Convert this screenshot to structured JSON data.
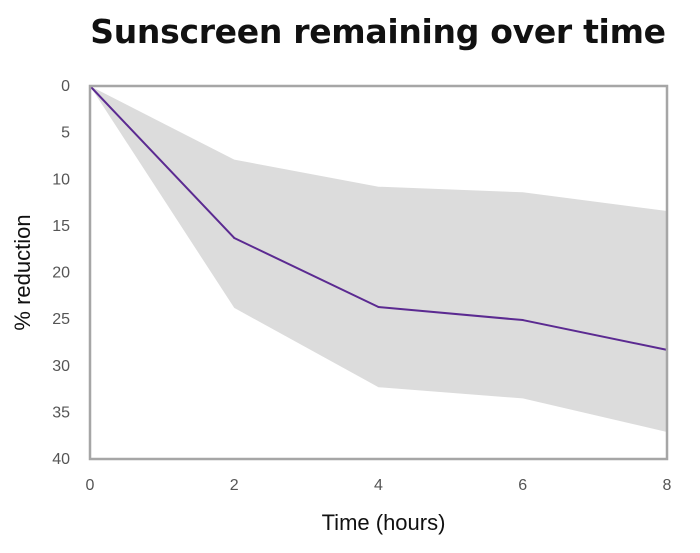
{
  "chart_data": {
    "type": "area",
    "title": "Sunscreen remaining over time",
    "xlabel": "Time (hours)",
    "ylabel": "% reduction",
    "xlim": [
      0,
      8
    ],
    "ylim": [
      0,
      40
    ],
    "y_inverted": true,
    "grid": false,
    "x_ticks": [
      "0",
      "2",
      "4",
      "6",
      "8"
    ],
    "y_ticks": [
      "0",
      "5",
      "10",
      "15",
      "20",
      "25",
      "30",
      "35",
      "40"
    ],
    "x": [
      0,
      2,
      4,
      6,
      8
    ],
    "series": [
      {
        "values": [
          0,
          16.3,
          23.7,
          25.1,
          28.3
        ],
        "color": "#5b2a91"
      }
    ],
    "band": {
      "lower": [
        0,
        7.9,
        10.8,
        11.4,
        13.4
      ],
      "upper": [
        0,
        23.8,
        32.3,
        33.5,
        37.1
      ],
      "color": "#dcdcdc"
    },
    "frame_color": "#a6a6a6"
  }
}
